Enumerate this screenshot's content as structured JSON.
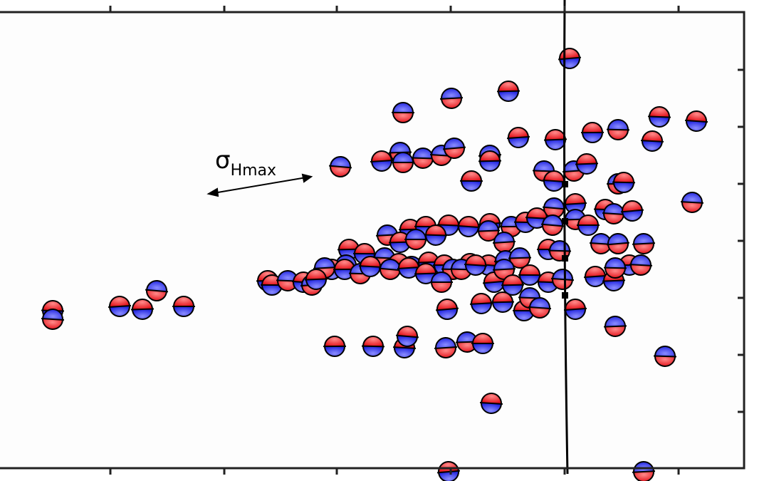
{
  "label": {
    "symbol": "σ",
    "subscript": "Hmax"
  }
}
